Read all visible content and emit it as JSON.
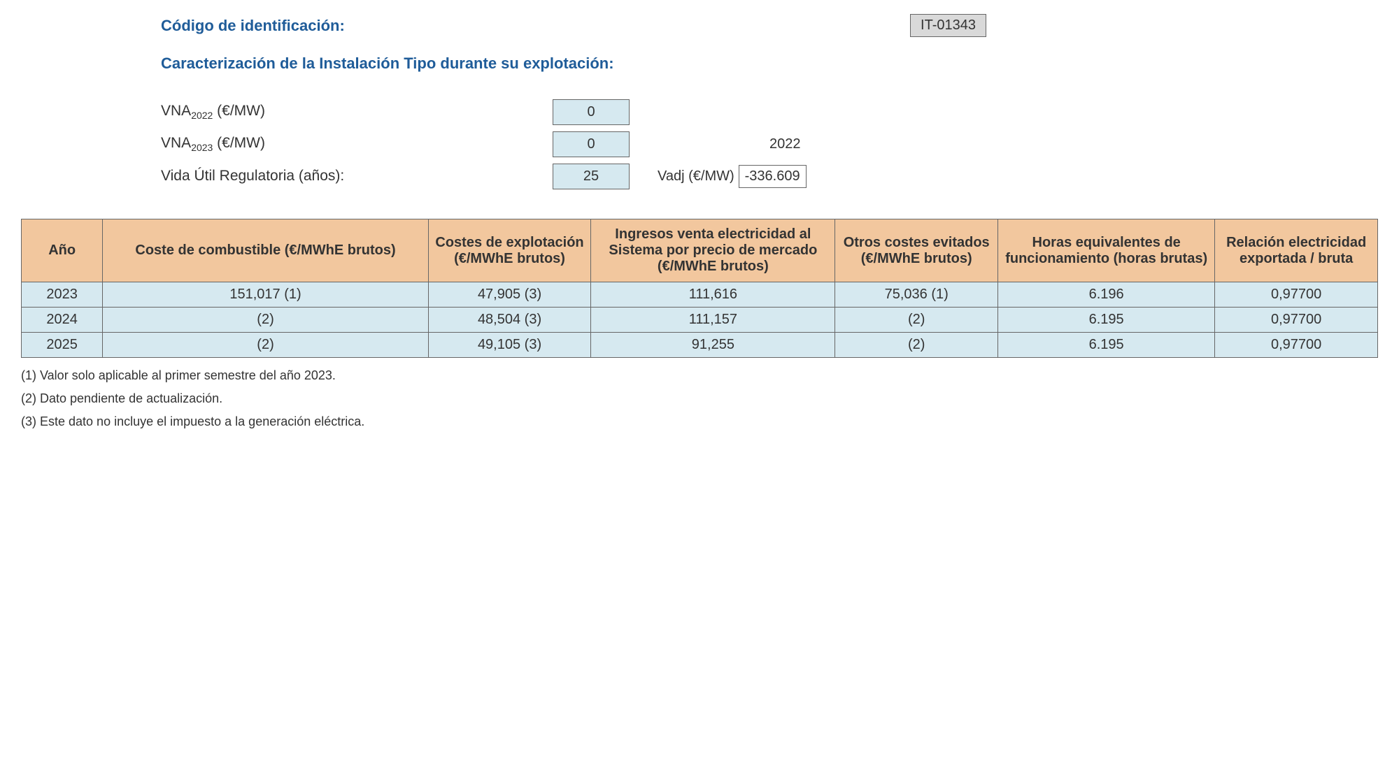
{
  "header": {
    "code_label": "Código de identificación:",
    "code_value": "IT-01343",
    "section_title": "Caracterización de la Instalación Tipo durante su explotación:"
  },
  "params": {
    "vna2022_label_prefix": "VNA",
    "vna2022_sub": "2022",
    "vna2022_units": " (€/MW)",
    "vna2022_value": "0",
    "vna2023_label_prefix": "VNA",
    "vna2023_sub": "2023",
    "vna2023_units": " (€/MW)",
    "vna2023_value": "0",
    "extra_year": "2022",
    "vida_label": "Vida Útil Regulatoria (años):",
    "vida_value": "25",
    "vadj_label": "Vadj (€/MW)",
    "vadj_value": "-336.609"
  },
  "table": {
    "headers": {
      "c0": "Año",
      "c1": "Coste de combustible (€/MWhE brutos)",
      "c2": "Costes de explotación (€/MWhE brutos)",
      "c3": "Ingresos venta electricidad al Sistema por precio de mercado (€/MWhE brutos)",
      "c4": "Otros costes evitados (€/MWhE brutos)",
      "c5": "Horas equivalentes de funcionamiento (horas brutas)",
      "c6": "Relación electricidad exportada / bruta"
    },
    "rows": [
      {
        "c0": "2023",
        "c1": "151,017 (1)",
        "c2": "47,905 (3)",
        "c3": "111,616",
        "c4": "75,036 (1)",
        "c5": "6.196",
        "c6": "0,97700"
      },
      {
        "c0": "2024",
        "c1": "(2)",
        "c2": "48,504 (3)",
        "c3": "111,157",
        "c4": "(2)",
        "c5": "6.195",
        "c6": "0,97700"
      },
      {
        "c0": "2025",
        "c1": "(2)",
        "c2": "49,105 (3)",
        "c3": "91,255",
        "c4": "(2)",
        "c5": "6.195",
        "c6": "0,97700"
      }
    ],
    "col_widths": [
      "6%",
      "24%",
      "12%",
      "18%",
      "12%",
      "16%",
      "12%"
    ]
  },
  "footnotes": {
    "n1": "(1) Valor solo aplicable al primer semestre del año 2023.",
    "n2": "(2) Dato pendiente de actualización.",
    "n3": "(3) Este dato no incluye el impuesto a la generación eléctrica."
  },
  "colors": {
    "header_bg": "#f2c79e",
    "cell_bg": "#d6e9f0",
    "code_bg": "#d9d9d9",
    "title_color": "#1f5c99",
    "border_color": "#666666"
  }
}
